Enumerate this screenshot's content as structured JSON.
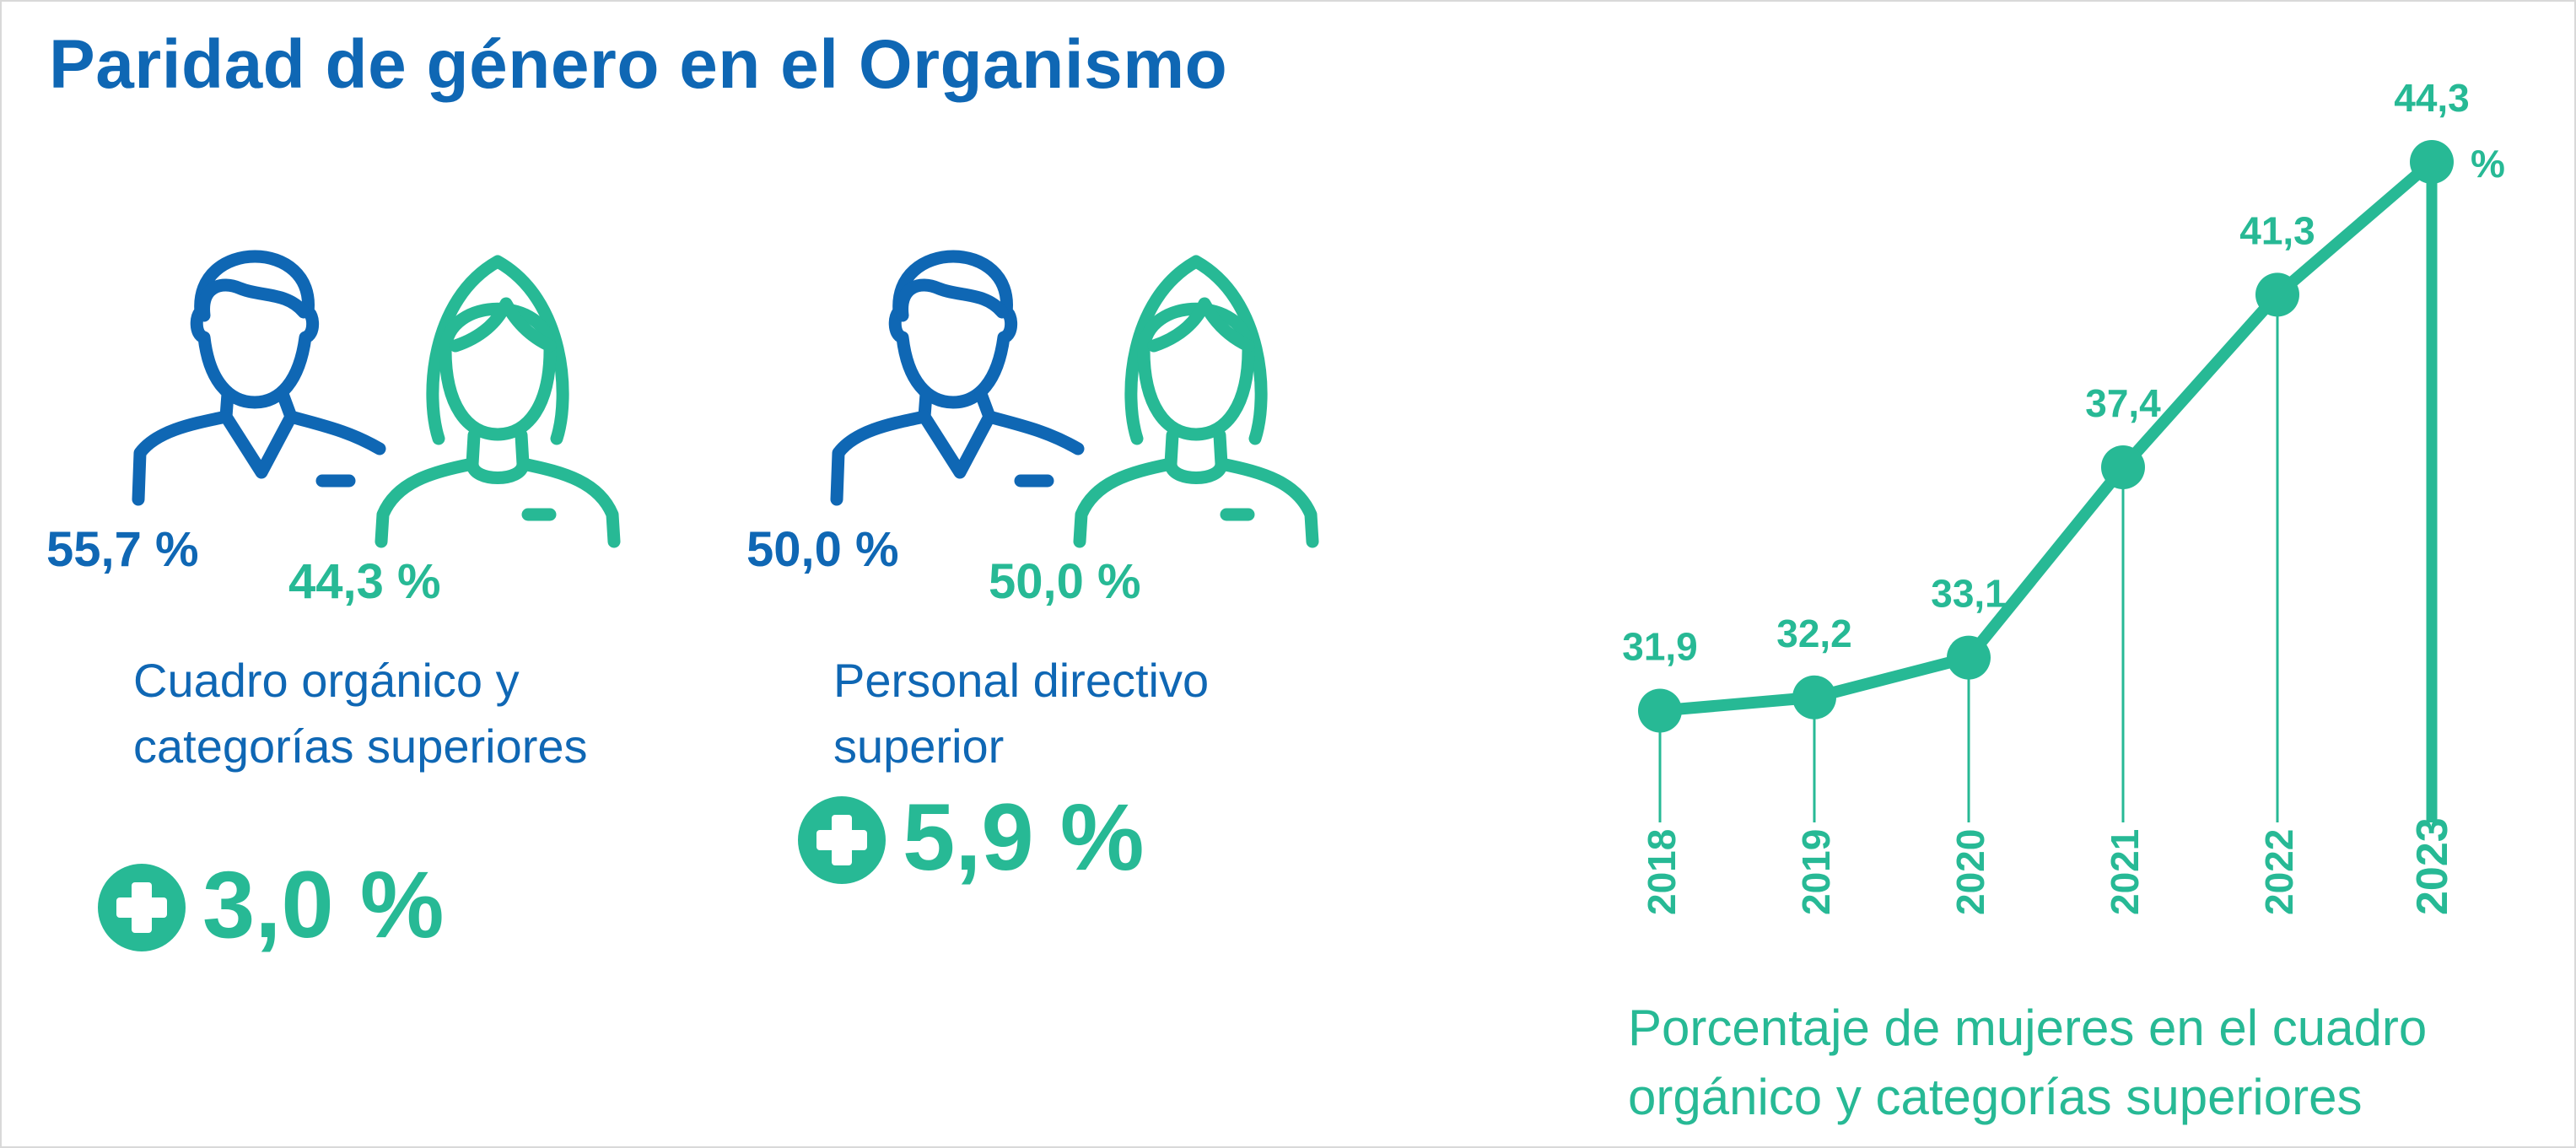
{
  "title": "Paridad de género en el Organismo",
  "colors": {
    "blue": "#0f67b4",
    "green": "#27b995"
  },
  "groups": [
    {
      "men_pct": "55,7 %",
      "women_pct": "44,3 %",
      "caption_lines": [
        "Cuadro orgánico y",
        "categorías superiores"
      ],
      "increase": "3,0 %"
    },
    {
      "men_pct": "50,0 %",
      "women_pct": "50,0 %",
      "caption_lines": [
        "Personal directivo",
        "superior"
      ],
      "increase": "5,9 %"
    }
  ],
  "icons": {
    "man": "man-icon",
    "woman": "woman-icon",
    "plus": "plus-circle-icon"
  },
  "chart_caption_lines": [
    "Porcentaje de mujeres en el cuadro",
    "orgánico y categorías superiores"
  ],
  "chart_data": {
    "type": "line",
    "title": "Porcentaje de mujeres en el cuadro orgánico y categorías superiores",
    "categories": [
      "2018",
      "2019",
      "2020",
      "2021",
      "2022",
      "2023"
    ],
    "values": [
      31.9,
      32.2,
      33.1,
      37.4,
      41.3,
      44.3
    ],
    "value_labels": [
      "31,9",
      "32,2",
      "33,1",
      "37,4",
      "41,3",
      "44,3"
    ],
    "unit_label": "%",
    "highlight": "2023",
    "ylim": [
      31.3,
      44.3
    ],
    "grid": false,
    "legend": "none"
  }
}
